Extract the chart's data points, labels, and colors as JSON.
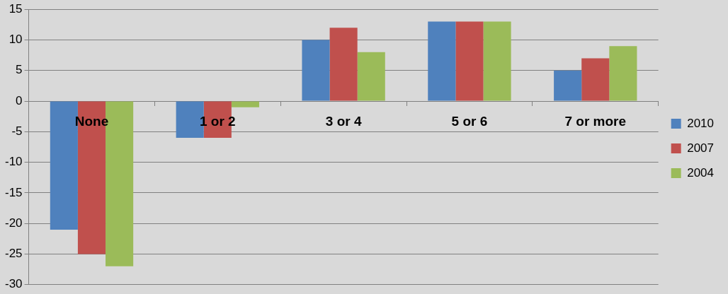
{
  "chart_data": {
    "type": "bar",
    "categories": [
      "None",
      "1 or 2",
      "3 or 4",
      "5 or 6",
      "7 or more"
    ],
    "series": [
      {
        "name": "2010",
        "color": "#4f81bd",
        "values": [
          -21,
          -6,
          10,
          13,
          5
        ]
      },
      {
        "name": "2007",
        "color": "#c0504d",
        "values": [
          -25,
          -6,
          12,
          13,
          7
        ]
      },
      {
        "name": "2004",
        "color": "#9bbb59",
        "values": [
          -27,
          -1,
          8,
          13,
          9
        ]
      }
    ],
    "ylim": [
      -30,
      15
    ],
    "yticks": [
      -30,
      -25,
      -20,
      -15,
      -10,
      -5,
      0,
      5,
      10,
      15
    ],
    "grid": "y",
    "legend": "right"
  }
}
